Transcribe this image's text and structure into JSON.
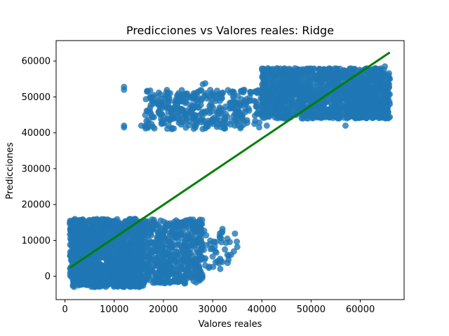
{
  "chart_data": {
    "type": "scatter",
    "title": "Predicciones vs Valores reales: Ridge",
    "xlabel": "Valores reales",
    "ylabel": "Predicciones",
    "xlim": [
      -1800,
      68900
    ],
    "ylim": [
      -6500,
      65700
    ],
    "xticks": [
      0,
      10000,
      20000,
      30000,
      40000,
      50000,
      60000
    ],
    "yticks": [
      0,
      10000,
      20000,
      30000,
      40000,
      50000,
      60000
    ],
    "xtick_labels": [
      "0",
      "10000",
      "20000",
      "30000",
      "40000",
      "50000",
      "60000"
    ],
    "ytick_labels": [
      "0",
      "10000",
      "20000",
      "30000",
      "40000",
      "50000",
      "60000"
    ],
    "grid": false,
    "series": [
      {
        "kind": "points",
        "color": "#1f77b4",
        "clusters": [
          {
            "x_range": [
              1000,
              16000
            ],
            "y_range": [
              -3000,
              16000
            ],
            "density": "very high"
          },
          {
            "x_range": [
              16000,
              28000
            ],
            "y_range": [
              -2000,
              16000
            ],
            "density": "high"
          },
          {
            "x_range": [
              28000,
              35000
            ],
            "y_range": [
              2000,
              13000
            ],
            "density": "low"
          },
          {
            "x_range": [
              16000,
              40000
            ],
            "y_range": [
              41000,
              52000
            ],
            "density": "medium"
          },
          {
            "x_range": [
              40000,
              66000
            ],
            "y_range": [
              44000,
              58000
            ],
            "density": "very high"
          }
        ],
        "points": [
          [
            12000,
            52800
          ],
          [
            12000,
            52000
          ],
          [
            12000,
            42000
          ],
          [
            12000,
            41500
          ],
          [
            15500,
            42000
          ],
          [
            28000,
            53500
          ],
          [
            28500,
            53800
          ],
          [
            35000,
            8200
          ],
          [
            32000,
            13200
          ],
          [
            31500,
            12000
          ],
          [
            33000,
            10500
          ],
          [
            32500,
            7500
          ],
          [
            30000,
            5500
          ],
          [
            31000,
            4200
          ],
          [
            28500,
            3000
          ],
          [
            32000,
            4000
          ],
          [
            30500,
            7000
          ],
          [
            29500,
            9000
          ],
          [
            33000,
            6000
          ],
          [
            31800,
            9500
          ],
          [
            24000,
            2000
          ],
          [
            22500,
            0
          ],
          [
            20000,
            -500
          ],
          [
            19000,
            -1500
          ],
          [
            37000,
            43500
          ],
          [
            38500,
            42500
          ],
          [
            36000,
            44500
          ],
          [
            34000,
            47500
          ],
          [
            65000,
            58500
          ],
          [
            64000,
            57500
          ],
          [
            63000,
            58000
          ],
          [
            66000,
            55000
          ],
          [
            57000,
            42000
          ],
          [
            59500,
            46000
          ],
          [
            41000,
            42000
          ],
          [
            44500,
            44000
          ]
        ]
      },
      {
        "kind": "line",
        "name": "",
        "color": "#008000",
        "x": [
          1000,
          66000
        ],
        "y": [
          2400,
          62400
        ]
      }
    ]
  }
}
